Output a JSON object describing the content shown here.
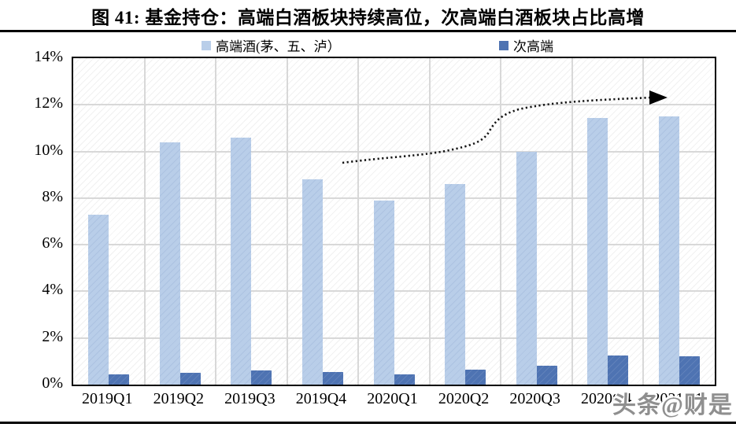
{
  "figure": {
    "title": "图 41:  基金持仓：高端白酒板块持续高位，次高端白酒板块占比高增",
    "watermark": "头条@财是"
  },
  "legend": [
    {
      "label": "高端酒(茅、五、泸）",
      "color": "#b9cee9"
    },
    {
      "label": "次高端",
      "color": "#4e73b2"
    }
  ],
  "chart_data": {
    "type": "bar",
    "categories": [
      "2019Q1",
      "2019Q2",
      "2019Q3",
      "2019Q4",
      "2020Q1",
      "2020Q2",
      "2020Q3",
      "2020Q4",
      "2021Q1"
    ],
    "series": [
      {
        "name": "高端酒(茅、五、泸）",
        "color": "#b9cee9",
        "values": [
          7.3,
          10.4,
          10.6,
          8.8,
          7.9,
          8.6,
          10.0,
          11.45,
          11.5
        ]
      },
      {
        "name": "次高端",
        "color": "#4e73b2",
        "values": [
          0.45,
          0.5,
          0.6,
          0.55,
          0.45,
          0.65,
          0.8,
          1.25,
          1.2
        ]
      }
    ],
    "title": "基金持仓：高端白酒板块持续高位，次高端白酒板块占比高增",
    "xlabel": "",
    "ylabel": "",
    "ylim": [
      0,
      14
    ],
    "yticks": [
      "14%",
      "12%",
      "10%",
      "8%",
      "6%",
      "4%",
      "2%",
      "0%"
    ],
    "grid": true,
    "legend_position": "top",
    "annotations": [
      {
        "type": "dotted-arrow",
        "description": "黑色虚线箭头：自2020Q1上方约9.6%处起，向右上方延伸至约12.3%处，表示持仓占比持续走高"
      }
    ],
    "colors": {
      "gridline": "#d8d8d8",
      "plot_border": "#000000",
      "background": "#ffffff"
    }
  }
}
